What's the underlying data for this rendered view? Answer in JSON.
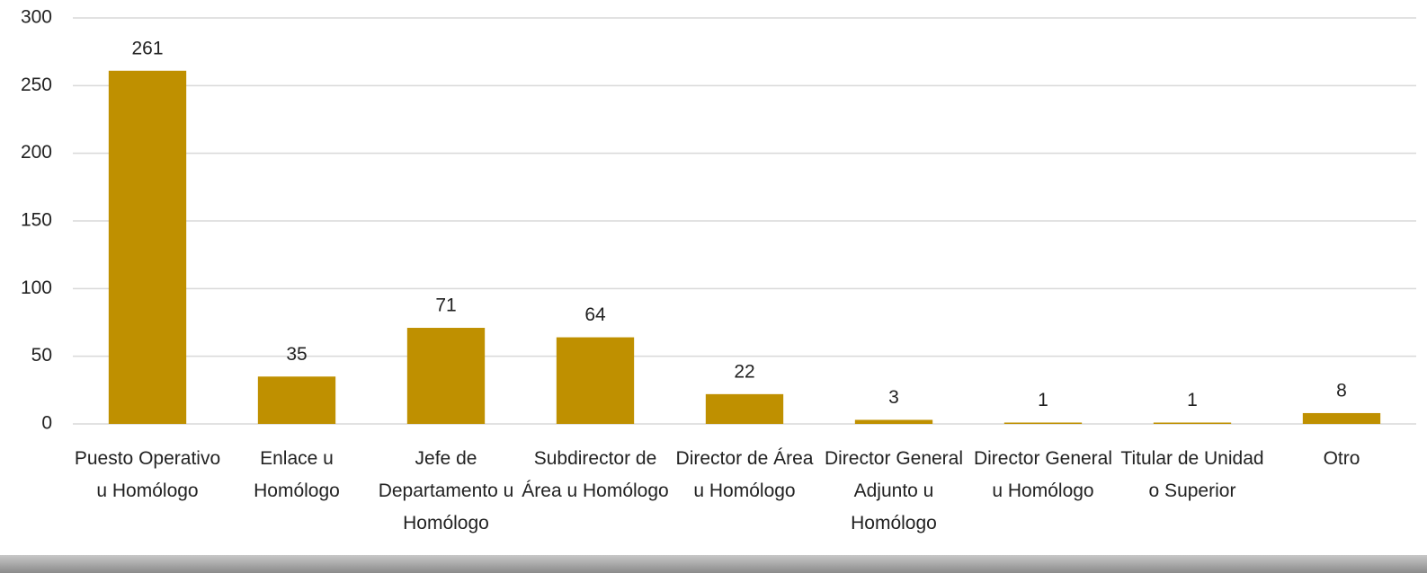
{
  "chart_data": {
    "type": "bar",
    "categories": [
      "Puesto Operativo u Homólogo",
      "Enlace u Homólogo",
      "Jefe de Departamento u Homólogo",
      "Subdirector de Área u Homólogo",
      "Director de Área u Homólogo",
      "Director General Adjunto u Homólogo",
      "Director General u Homólogo",
      "Titular de Unidad o Superior",
      "Otro"
    ],
    "values": [
      261,
      35,
      71,
      64,
      22,
      3,
      1,
      1,
      8
    ],
    "color": "#bf9000",
    "ylim": [
      0,
      300
    ],
    "yticks": [
      0,
      50,
      100,
      150,
      200,
      250,
      300
    ],
    "grid": true
  }
}
